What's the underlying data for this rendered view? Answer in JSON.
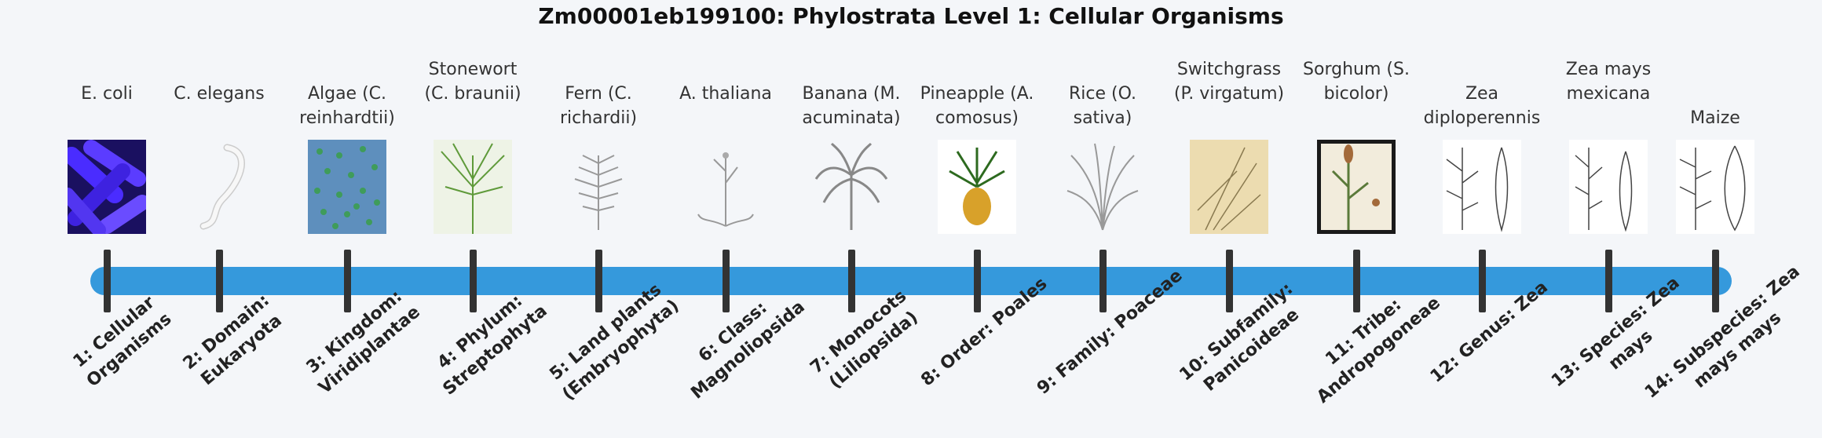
{
  "title": "Zm00001eb199100: Phylostrata Level 1: Cellular Organisms",
  "stages": [
    {
      "label": "E. coli",
      "caption": "1: Cellular Organisms",
      "icon": "e-coli-image"
    },
    {
      "label": "C. elegans",
      "caption": "2: Domain: Eukaryota",
      "icon": "c-elegans-image"
    },
    {
      "label": "Algae (C. reinhardtii)",
      "caption": "3: Kingdom: Viridiplantae",
      "icon": "algae-image"
    },
    {
      "label": "Stonewort (C. braunii)",
      "caption": "4: Phylum: Streptophyta",
      "icon": "stonewort-image"
    },
    {
      "label": "Fern (C. richardii)",
      "caption": "5: Land plants (Embryophyta)",
      "icon": "fern-image"
    },
    {
      "label": "A. thaliana",
      "caption": "6: Class: Magnoliopsida",
      "icon": "arabidopsis-image"
    },
    {
      "label": "Banana (M. acuminata)",
      "caption": "7: Monocots (Liliopsida)",
      "icon": "banana-image"
    },
    {
      "label": "Pineapple (A. comosus)",
      "caption": "8: Order: Poales",
      "icon": "pineapple-image"
    },
    {
      "label": "Rice (O. sativa)",
      "caption": "9: Family: Poaceae",
      "icon": "rice-image"
    },
    {
      "label": "Switchgrass (P. virgatum)",
      "caption": "10: Subfamily: Panicoideae",
      "icon": "switchgrass-image"
    },
    {
      "label": "Sorghum (S. bicolor)",
      "caption": "11: Tribe: Andropogoneae",
      "icon": "sorghum-image"
    },
    {
      "label": "Zea diploperennis",
      "caption": "12: Genus: Zea",
      "icon": "zea-diploperennis-image"
    },
    {
      "label": "Zea mays mexicana",
      "caption": "13: Species: Zea mays",
      "icon": "zea-mexicana-image"
    },
    {
      "label": "Maize",
      "caption": "14: Subspecies: Zea mays mays",
      "icon": "maize-image"
    }
  ],
  "colors": {
    "timeline": "#3599dc",
    "tick": "#333333",
    "background": "#f4f6f9"
  }
}
